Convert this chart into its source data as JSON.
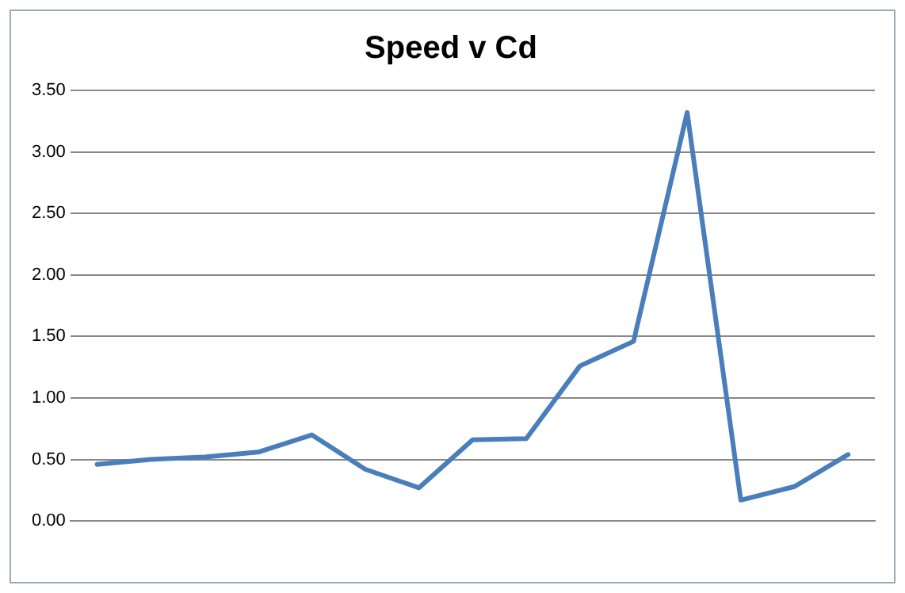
{
  "chart_data": {
    "type": "line",
    "title": "Speed v Cd",
    "categories": [
      null,
      null,
      null,
      null,
      null,
      null,
      null,
      null,
      null,
      null,
      null,
      null,
      null,
      null,
      null
    ],
    "values": [
      0.46,
      0.5,
      0.52,
      0.56,
      0.7,
      0.42,
      0.27,
      0.66,
      0.67,
      1.26,
      1.46,
      3.32,
      0.17,
      0.28,
      0.54
    ],
    "color": "#4a7ebb",
    "ylim": [
      0,
      3.5
    ],
    "yticks": [
      {
        "value": 0,
        "label": "0.00"
      },
      {
        "value": 0.5,
        "label": "0.50"
      },
      {
        "value": 1,
        "label": "1.00"
      },
      {
        "value": 1.5,
        "label": "1.50"
      },
      {
        "value": 2,
        "label": "2.00"
      },
      {
        "value": 2.5,
        "label": "2.50"
      },
      {
        "value": 3,
        "label": "3.00"
      },
      {
        "value": 3.5,
        "label": "3.50"
      }
    ],
    "grid": "y",
    "legend": false,
    "marker": "none",
    "line_style": "solid"
  }
}
